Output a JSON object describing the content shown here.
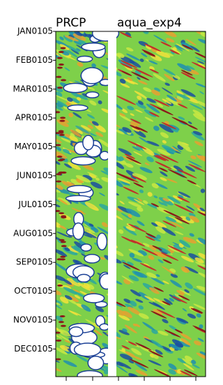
{
  "chart_data": {
    "type": "heatmap",
    "title": "PRCP",
    "subtitle": "aqua_exp4",
    "categories": [
      "JAN0105",
      "FEB0105",
      "MAR0105",
      "APR0105",
      "MAY0105",
      "JUN0105",
      "JUL0105",
      "AUG0105",
      "SEP0105",
      "OCT0105",
      "NOV0105",
      "DEC0105"
    ]
  }
}
